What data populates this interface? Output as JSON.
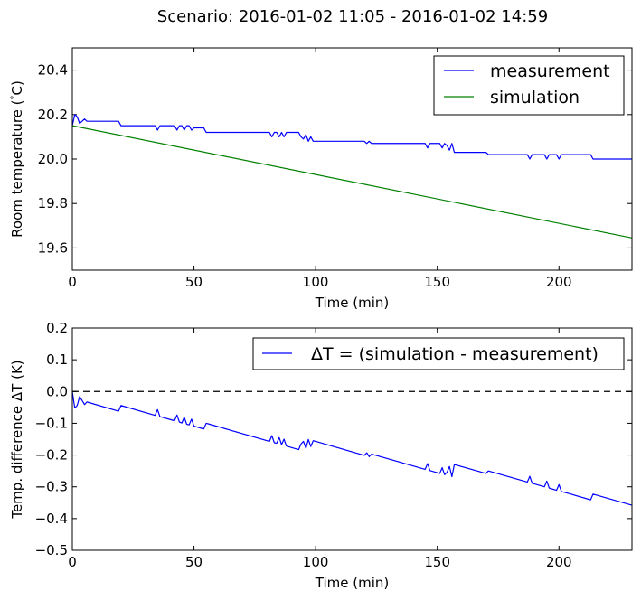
{
  "title": "Scenario: 2016-01-02 11:05 - 2016-01-02 14:59",
  "chart_data": [
    {
      "type": "line",
      "xlabel": "Time (min)",
      "ylabel": "Room temperature (°C)",
      "xlim": [
        0,
        230
      ],
      "ylim": [
        19.5,
        20.5
      ],
      "xticks": [
        0,
        50,
        100,
        150,
        200
      ],
      "yticks": [
        19.6,
        19.8,
        20.0,
        20.2,
        20.4
      ],
      "ytick_labels": [
        "19.6",
        "19.8",
        "20.0",
        "20.2",
        "20.4"
      ],
      "grid": false,
      "legend_position": "top-right",
      "series": [
        {
          "name": "measurement",
          "color": "#0000ff",
          "x": [
            0,
            1,
            2,
            3,
            4,
            5,
            6,
            19,
            20,
            34,
            35,
            36,
            42,
            43,
            44,
            45,
            46,
            47,
            48,
            49,
            50,
            54,
            55,
            56,
            81,
            82,
            83,
            84,
            85,
            86,
            87,
            88,
            89,
            93,
            94,
            95,
            96,
            97,
            98,
            99,
            100,
            120,
            121,
            122,
            123,
            145,
            146,
            147,
            151,
            152,
            153,
            154,
            155,
            156,
            157,
            158,
            170,
            171,
            187,
            188,
            189,
            194,
            195,
            196,
            199,
            200,
            201,
            202,
            203,
            204,
            213,
            214,
            230
          ],
          "y": [
            20.15,
            20.2,
            20.19,
            20.16,
            20.17,
            20.18,
            20.17,
            20.17,
            20.15,
            20.15,
            20.13,
            20.15,
            20.15,
            20.13,
            20.15,
            20.15,
            20.13,
            20.15,
            20.15,
            20.13,
            20.14,
            20.14,
            20.12,
            20.12,
            20.12,
            20.1,
            20.12,
            20.12,
            20.1,
            20.12,
            20.1,
            20.12,
            20.12,
            20.12,
            20.1,
            20.09,
            20.11,
            20.08,
            20.1,
            20.08,
            20.08,
            20.08,
            20.07,
            20.08,
            20.07,
            20.07,
            20.05,
            20.07,
            20.07,
            20.05,
            20.07,
            20.06,
            20.04,
            20.07,
            20.03,
            20.03,
            20.03,
            20.02,
            20.02,
            20.0,
            20.02,
            20.02,
            20.0,
            20.02,
            20.02,
            20.0,
            20.02,
            20.02,
            20.02,
            20.02,
            20.02,
            20.0,
            20.0
          ]
        },
        {
          "name": "simulation",
          "color": "#008000",
          "x": [
            0,
            230
          ],
          "y": [
            20.15,
            19.645
          ]
        }
      ]
    },
    {
      "type": "line",
      "xlabel": "Time (min)",
      "ylabel": "Temp. difference ΔT (K)",
      "xlim": [
        0,
        230
      ],
      "ylim": [
        -0.5,
        0.2
      ],
      "xticks": [
        0,
        50,
        100,
        150,
        200
      ],
      "yticks": [
        -0.5,
        -0.4,
        -0.3,
        -0.2,
        -0.1,
        0.0,
        0.1,
        0.2
      ],
      "ytick_labels": [
        "−0.5",
        "−0.4",
        "−0.3",
        "−0.2",
        "−0.1",
        "0.0",
        "0.1",
        "0.2"
      ],
      "grid": false,
      "legend_position": "top-right",
      "reference_line": {
        "y": 0.0,
        "style": "dashed",
        "color": "#000000"
      },
      "series": [
        {
          "name": "ΔT = (simulation - measurement)",
          "color": "#0000ff",
          "x": [
            0,
            1,
            2,
            3,
            4,
            5,
            6,
            19,
            20,
            34,
            35,
            36,
            42,
            43,
            44,
            45,
            46,
            47,
            48,
            49,
            50,
            54,
            55,
            56,
            81,
            82,
            83,
            84,
            85,
            86,
            87,
            88,
            89,
            93,
            94,
            95,
            96,
            97,
            98,
            99,
            100,
            120,
            121,
            122,
            123,
            145,
            146,
            147,
            151,
            152,
            153,
            154,
            155,
            156,
            157,
            158,
            170,
            171,
            187,
            188,
            189,
            194,
            195,
            196,
            199,
            200,
            201,
            202,
            203,
            204,
            213,
            214,
            230
          ],
          "y": [
            0.0,
            -0.052,
            -0.044,
            -0.016,
            -0.028,
            -0.041,
            -0.033,
            -0.062,
            -0.044,
            -0.075,
            -0.057,
            -0.079,
            -0.092,
            -0.074,
            -0.096,
            -0.099,
            -0.081,
            -0.103,
            -0.105,
            -0.087,
            -0.109,
            -0.118,
            -0.1,
            -0.102,
            -0.157,
            -0.139,
            -0.161,
            -0.163,
            -0.145,
            -0.167,
            -0.15,
            -0.172,
            -0.174,
            -0.183,
            -0.165,
            -0.157,
            -0.179,
            -0.151,
            -0.173,
            -0.155,
            -0.157,
            -0.201,
            -0.193,
            -0.205,
            -0.197,
            -0.245,
            -0.227,
            -0.249,
            -0.258,
            -0.24,
            -0.262,
            -0.254,
            -0.236,
            -0.268,
            -0.23,
            -0.232,
            -0.258,
            -0.25,
            -0.285,
            -0.267,
            -0.289,
            -0.3,
            -0.282,
            -0.304,
            -0.311,
            -0.293,
            -0.315,
            -0.317,
            -0.319,
            -0.321,
            -0.341,
            -0.323,
            -0.358
          ]
        }
      ]
    }
  ]
}
